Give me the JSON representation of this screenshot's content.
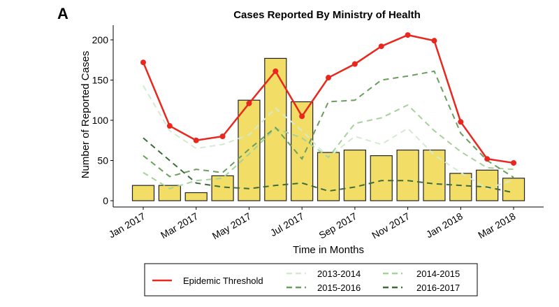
{
  "panel_label": "A",
  "chart_data": {
    "type": "bar",
    "title": "Cases Reported By Ministry of Health",
    "xlabel": "Time in Months",
    "ylabel": "Number of Reported Cases",
    "ylim": [
      0,
      210
    ],
    "yticks": [
      0,
      50,
      100,
      150,
      200
    ],
    "months": [
      "Jan 2017",
      "Feb 2017",
      "Mar 2017",
      "Apr 2017",
      "May 2017",
      "Jun 2017",
      "Jul 2017",
      "Aug 2017",
      "Sep 2017",
      "Oct 2017",
      "Nov 2017",
      "Dec 2017",
      "Jan 2018",
      "Feb 2018",
      "Mar 2018"
    ],
    "xtick_labels": [
      "Jan 2017",
      "Mar 2017",
      "May 2017",
      "Jul 2017",
      "Sep 2017",
      "Nov 2017",
      "Jan 2018",
      "Mar 2018"
    ],
    "bars": {
      "name": "Reported cases",
      "color": "#f2de66",
      "values": [
        19,
        19,
        10,
        31,
        125,
        177,
        123,
        60,
        63,
        56,
        63,
        63,
        34,
        38,
        28
      ]
    },
    "series": [
      {
        "name": "Epidemic Threshold",
        "color": "#e8281e",
        "style": "solid",
        "values": [
          172,
          93,
          75,
          80,
          121,
          161,
          105,
          153,
          170,
          192,
          206,
          199,
          98,
          52,
          47
        ]
      },
      {
        "name": "2013-2014",
        "color": "#d3ead0",
        "style": "dashed",
        "values": [
          143,
          87,
          65,
          70,
          82,
          115,
          87,
          54,
          80,
          70,
          90,
          57,
          35,
          15,
          26
        ]
      },
      {
        "name": "2014-2015",
        "color": "#a6d19c",
        "style": "dashed",
        "values": [
          35,
          15,
          25,
          28,
          58,
          90,
          78,
          54,
          96,
          103,
          119,
          87,
          61,
          41,
          39
        ]
      },
      {
        "name": "2015-2016",
        "color": "#6a9e5e",
        "style": "dashed",
        "values": [
          56,
          30,
          39,
          35,
          64,
          91,
          52,
          123,
          125,
          150,
          155,
          161,
          84,
          50,
          29
        ]
      },
      {
        "name": "2016-2017",
        "color": "#3e6b3c",
        "style": "dashed",
        "values": [
          78,
          50,
          22,
          17,
          15,
          19,
          22,
          12,
          17,
          25,
          25,
          21,
          19,
          17,
          10
        ]
      }
    ],
    "legend_position": "bottom",
    "grid": false
  }
}
